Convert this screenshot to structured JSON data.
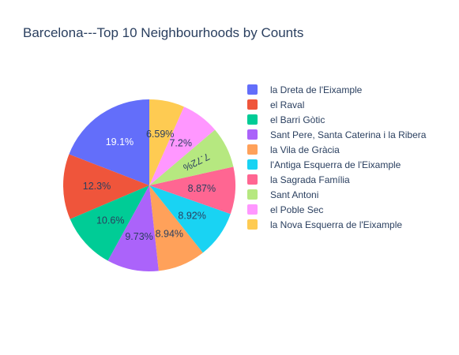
{
  "chart_data": {
    "type": "pie",
    "title": "Barcelona---Top 10 Neighbourhoods by Counts",
    "labels": [
      "la Dreta de l'Eixample",
      "el Raval",
      "el Barri Gòtic",
      "Sant Pere, Santa Caterina i la Ribera",
      "la Vila de Gràcia",
      "l'Antiga Esquerra de l'Eixample",
      "la Sagrada Família",
      "Sant Antoni",
      "el Poble Sec",
      "la Nova Esquerra de l'Eixample"
    ],
    "values": [
      19.1,
      12.3,
      10.6,
      9.73,
      8.94,
      8.92,
      8.87,
      7.72,
      7.2,
      6.59
    ],
    "value_labels": [
      "19.1%",
      "12.3%",
      "10.6%",
      "9.73%",
      "8.94%",
      "8.92%",
      "8.87%",
      "7.72%",
      "7.2%",
      "6.59%"
    ],
    "colors": [
      "#636efa",
      "#EF553B",
      "#00cc96",
      "#ab63fa",
      "#FFA15A",
      "#19d3f3",
      "#FF6692",
      "#B6E880",
      "#FF97FF",
      "#FECB52"
    ],
    "label_colors": [
      "#ffffff",
      "#2a3f5f",
      "#2a3f5f",
      "#2a3f5f",
      "#2a3f5f",
      "#2a3f5f",
      "#2a3f5f",
      "#2a3f5f",
      "#2a3f5f",
      "#2a3f5f"
    ],
    "direction": "counterclockwise",
    "legend_position": "right"
  }
}
